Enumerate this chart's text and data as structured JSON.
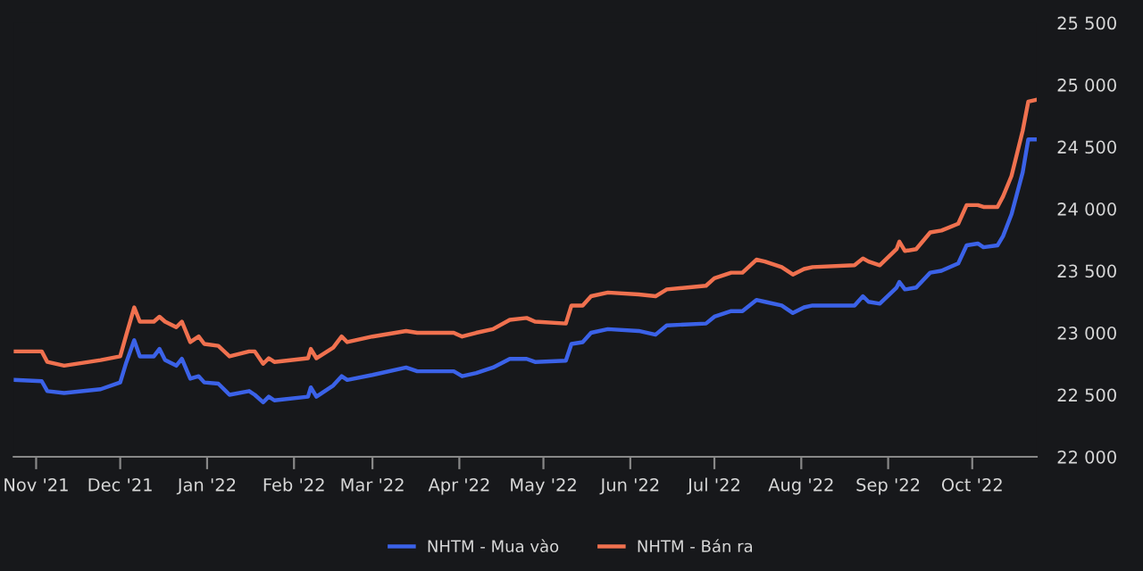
{
  "chart_data": {
    "type": "line",
    "x": [
      "2021-10-24",
      "2021-11-03",
      "2021-11-05",
      "2021-11-11",
      "2021-11-24",
      "2021-12-01",
      "2021-12-03",
      "2021-12-06",
      "2021-12-08",
      "2021-12-13",
      "2021-12-15",
      "2021-12-17",
      "2021-12-21",
      "2021-12-23",
      "2021-12-26",
      "2021-12-29",
      "2021-12-31",
      "2022-01-05",
      "2022-01-09",
      "2022-01-16",
      "2022-01-18",
      "2022-01-21",
      "2022-01-23",
      "2022-01-25",
      "2022-02-06",
      "2022-02-07",
      "2022-02-09",
      "2022-02-15",
      "2022-02-18",
      "2022-02-20",
      "2022-03-01",
      "2022-03-13",
      "2022-03-17",
      "2022-03-30",
      "2022-04-02",
      "2022-04-07",
      "2022-04-13",
      "2022-04-19",
      "2022-04-25",
      "2022-04-28",
      "2022-05-09",
      "2022-05-11",
      "2022-05-15",
      "2022-05-18",
      "2022-05-24",
      "2022-06-04",
      "2022-06-10",
      "2022-06-14",
      "2022-06-28",
      "2022-07-01",
      "2022-07-07",
      "2022-07-11",
      "2022-07-16",
      "2022-07-19",
      "2022-07-25",
      "2022-07-29",
      "2022-08-02",
      "2022-08-05",
      "2022-08-20",
      "2022-08-23",
      "2022-08-25",
      "2022-08-29",
      "2022-09-04",
      "2022-09-05",
      "2022-09-07",
      "2022-09-11",
      "2022-09-16",
      "2022-09-20",
      "2022-09-26",
      "2022-09-29",
      "2022-10-03",
      "2022-10-05",
      "2022-10-10",
      "2022-10-12",
      "2022-10-15",
      "2022-10-19",
      "2022-10-21",
      "2022-10-24"
    ],
    "series": [
      {
        "name": "NHTM - Mua vào",
        "color": "#3b62e8",
        "values": [
          22620,
          22610,
          22530,
          22515,
          22545,
          22600,
          22750,
          22940,
          22810,
          22810,
          22870,
          22780,
          22735,
          22790,
          22630,
          22650,
          22600,
          22590,
          22500,
          22530,
          22500,
          22440,
          22485,
          22455,
          22485,
          22560,
          22485,
          22575,
          22650,
          22620,
          22660,
          22720,
          22690,
          22690,
          22650,
          22675,
          22720,
          22790,
          22790,
          22765,
          22775,
          22910,
          22925,
          23000,
          23030,
          23015,
          22985,
          23060,
          23075,
          23130,
          23175,
          23175,
          23265,
          23250,
          23220,
          23160,
          23205,
          23220,
          23220,
          23295,
          23250,
          23235,
          23365,
          23410,
          23350,
          23365,
          23485,
          23500,
          23560,
          23705,
          23720,
          23690,
          23705,
          23780,
          23955,
          24295,
          24560,
          24560
        ]
      },
      {
        "name": "NHTM - Bán ra",
        "color": "#f0714f",
        "values": [
          22850,
          22850,
          22765,
          22735,
          22780,
          22810,
          22970,
          23205,
          23090,
          23090,
          23130,
          23090,
          23045,
          23090,
          22925,
          22970,
          22910,
          22895,
          22810,
          22850,
          22850,
          22750,
          22795,
          22765,
          22795,
          22870,
          22795,
          22880,
          22970,
          22925,
          22970,
          23015,
          23000,
          23000,
          22970,
          23000,
          23030,
          23105,
          23120,
          23090,
          23075,
          23220,
          23220,
          23295,
          23325,
          23310,
          23295,
          23350,
          23380,
          23440,
          23485,
          23485,
          23590,
          23575,
          23530,
          23470,
          23515,
          23530,
          23545,
          23600,
          23575,
          23545,
          23675,
          23735,
          23660,
          23675,
          23810,
          23825,
          23880,
          24030,
          24030,
          24015,
          24015,
          24100,
          24265,
          24630,
          24865,
          24880
        ]
      }
    ],
    "xlim": [
      "2021-10-24",
      "2022-10-24"
    ],
    "xticks": [
      {
        "value": "2021-11-01",
        "label": "Nov '21"
      },
      {
        "value": "2021-12-01",
        "label": "Dec '21"
      },
      {
        "value": "2022-01-01",
        "label": "Jan '22"
      },
      {
        "value": "2022-02-01",
        "label": "Feb '22"
      },
      {
        "value": "2022-03-01",
        "label": "Mar '22"
      },
      {
        "value": "2022-04-01",
        "label": "Apr '22"
      },
      {
        "value": "2022-05-01",
        "label": "May '22"
      },
      {
        "value": "2022-06-01",
        "label": "Jun '22"
      },
      {
        "value": "2022-07-01",
        "label": "Jul '22"
      },
      {
        "value": "2022-08-01",
        "label": "Aug '22"
      },
      {
        "value": "2022-09-01",
        "label": "Sep '22"
      },
      {
        "value": "2022-10-01",
        "label": "Oct '22"
      }
    ],
    "ylim": [
      22000,
      25500
    ],
    "yticks": [
      {
        "value": 22000,
        "label": "22 000"
      },
      {
        "value": 22500,
        "label": "22 500"
      },
      {
        "value": 23000,
        "label": "23 000"
      },
      {
        "value": 23500,
        "label": "23 500"
      },
      {
        "value": 24000,
        "label": "24 000"
      },
      {
        "value": 24500,
        "label": "24 500"
      },
      {
        "value": 25000,
        "label": "25 000"
      },
      {
        "value": 25500,
        "label": "25 500"
      }
    ],
    "grid": false,
    "legend": "bottom",
    "marker": "none",
    "line_style": "solid"
  }
}
